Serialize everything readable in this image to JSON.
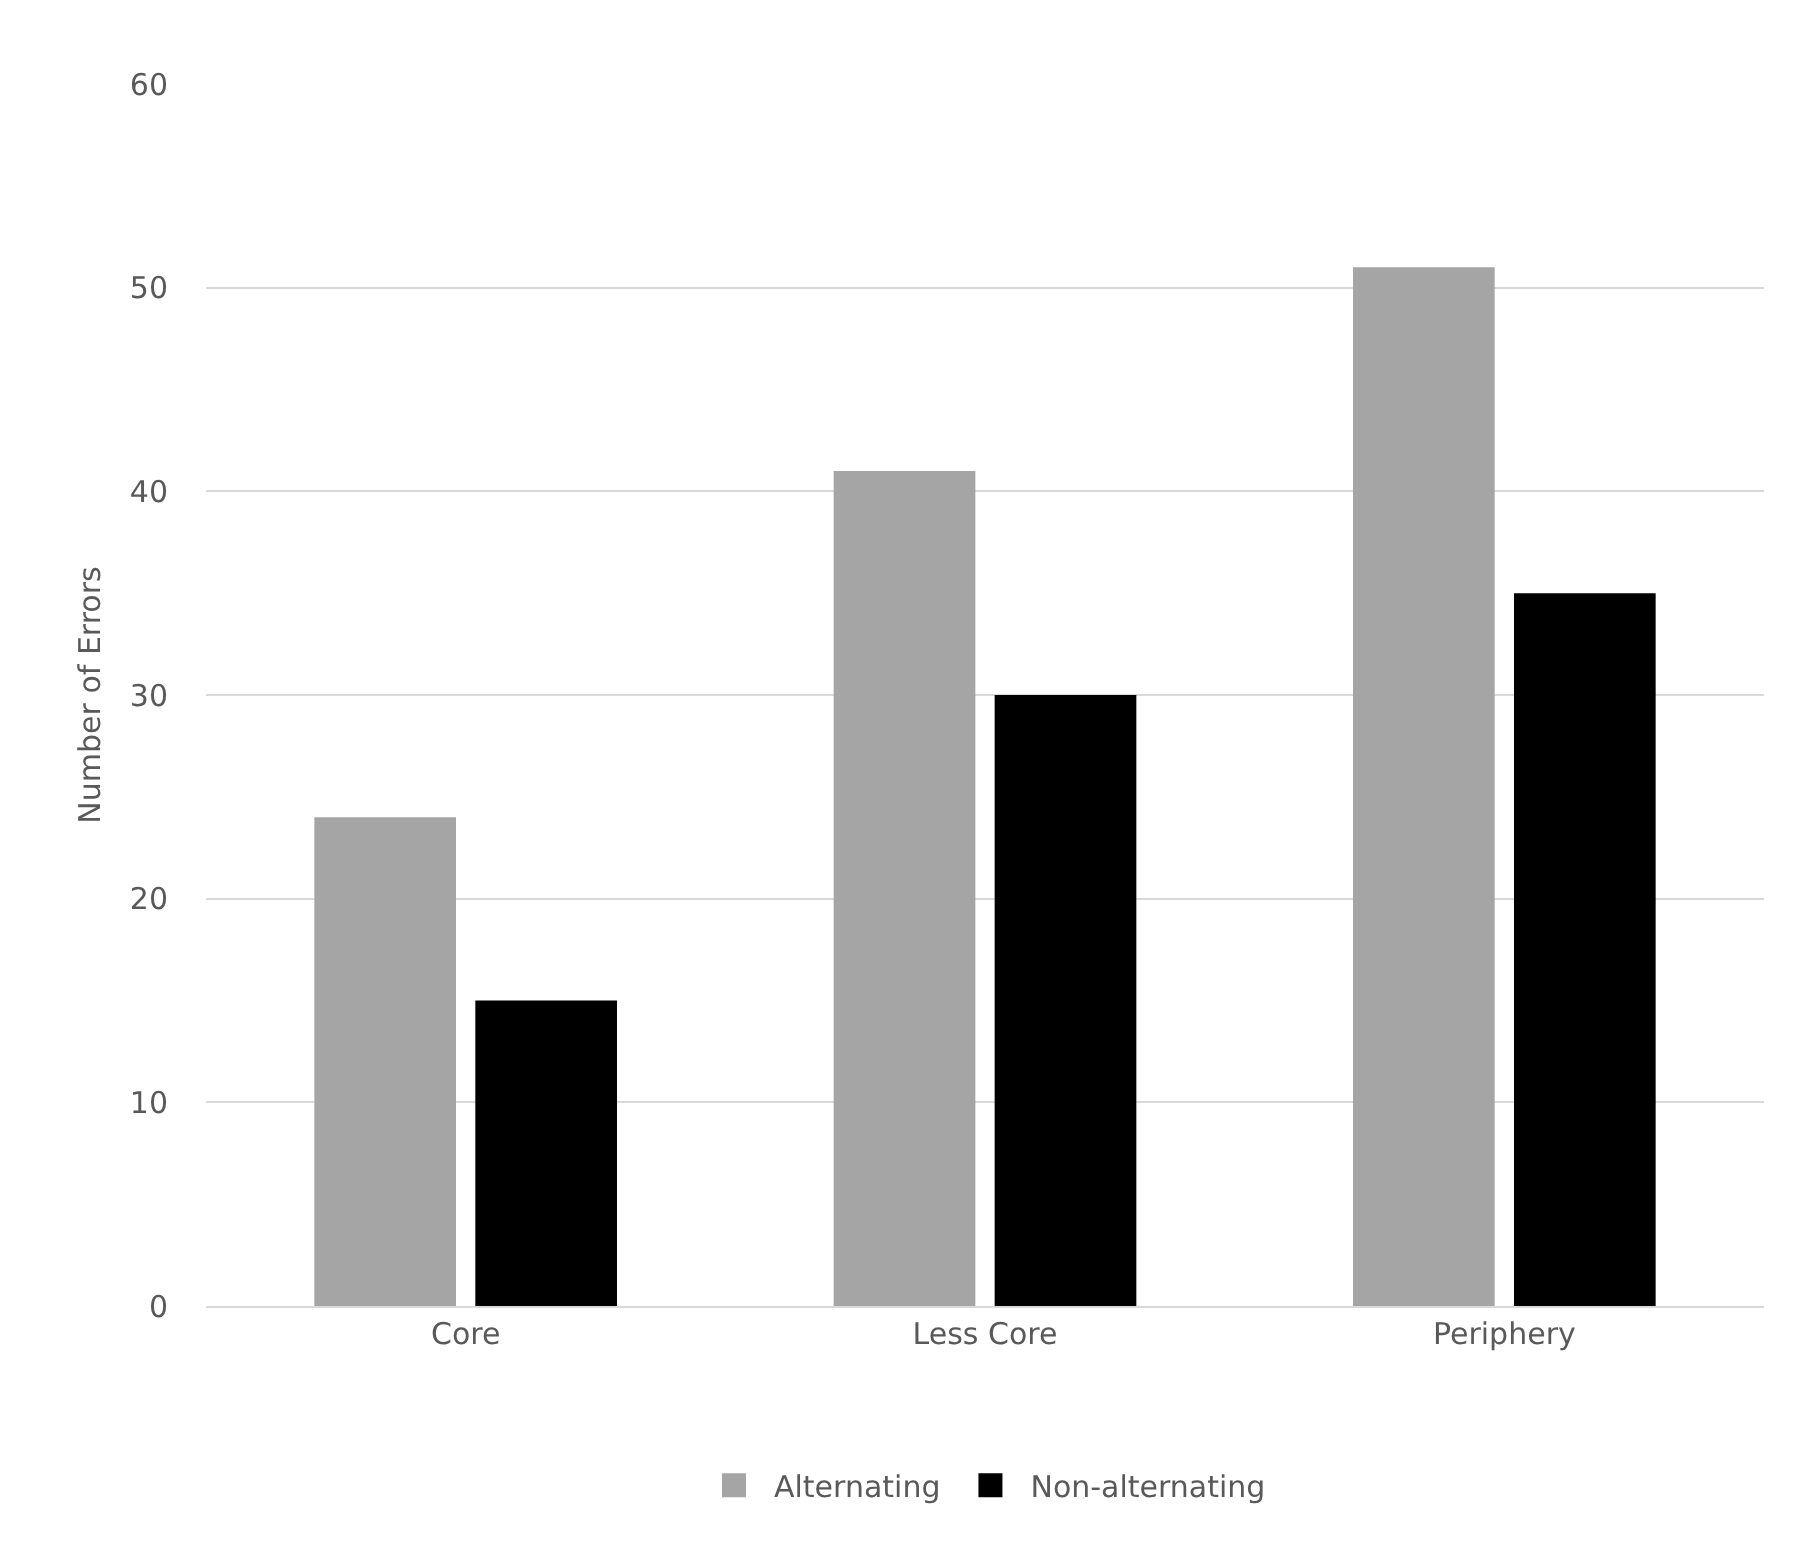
{
  "chart_data": {
    "type": "bar",
    "ylabel": "Number of Errors",
    "categories": [
      "Core",
      "Less Core",
      "Periphery"
    ],
    "series": [
      {
        "name": "Alternating",
        "color": "#a5a5a5",
        "values": [
          24,
          41,
          51
        ]
      },
      {
        "name": "Non-alternating",
        "color": "#000000",
        "values": [
          15,
          30,
          35
        ]
      }
    ],
    "ylim": [
      0,
      60
    ],
    "yticks": [
      0,
      10,
      20,
      30,
      40,
      50,
      60
    ],
    "grid": "y",
    "legend": "bottom"
  }
}
